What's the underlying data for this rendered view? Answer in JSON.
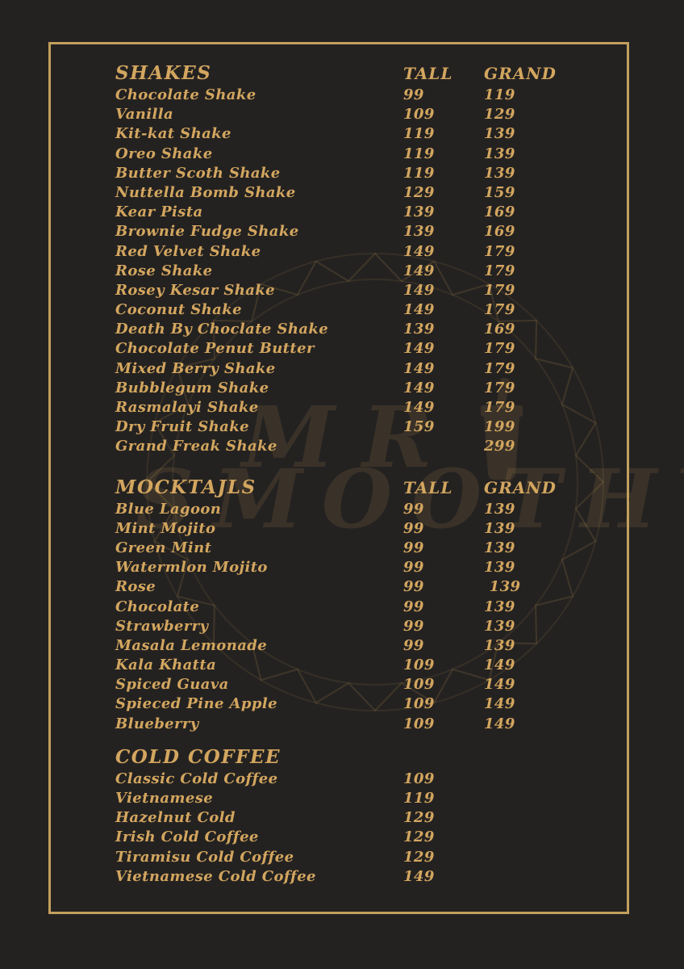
{
  "theme": {
    "background": "#242221",
    "text_gold": "#d3a65f",
    "border_gold": "#c2a05c",
    "watermark_gold": "#cda25a"
  },
  "watermark": {
    "line1": "MR",
    "line2": "SMOOTHY",
    "icon": "smoothie-cup-icon"
  },
  "column_headers": {
    "tall": "TALL",
    "grand": "GRAND"
  },
  "sections": [
    {
      "title": "SHAKES",
      "show_columns": true,
      "items": [
        {
          "name": "Chocolate Shake",
          "tall": "99",
          "grand": "119"
        },
        {
          "name": "Vanilla",
          "tall": "109",
          "grand": "129"
        },
        {
          "name": "Kit-kat Shake",
          "tall": "119",
          "grand": "139"
        },
        {
          "name": "Oreo Shake",
          "tall": "119",
          "grand": "139"
        },
        {
          "name": "Butter Scoth Shake",
          "tall": "119",
          "grand": "139"
        },
        {
          "name": "Nuttella Bomb Shake",
          "tall": "129",
          "grand": "159"
        },
        {
          "name": "Kear Pista",
          "tall": "139",
          "grand": "169"
        },
        {
          "name": "Brownie Fudge Shake",
          "tall": "139",
          "grand": "169"
        },
        {
          "name": "Red Velvet Shake",
          "tall": "149",
          "grand": "179"
        },
        {
          "name": "Rose Shake",
          "tall": "149",
          "grand": "179"
        },
        {
          "name": "Rosey Kesar Shake",
          "tall": "149",
          "grand": "179"
        },
        {
          "name": "Coconut Shake",
          "tall": "149",
          "grand": "179"
        },
        {
          "name": "Death By Choclate Shake",
          "tall": "139",
          "grand": "169"
        },
        {
          "name": "Chocolate Penut Butter",
          "tall": "149",
          "grand": "179"
        },
        {
          "name": "Mixed Berry Shake",
          "tall": "149",
          "grand": "179"
        },
        {
          "name": "Bubblegum Shake",
          "tall": "149",
          "grand": "179"
        },
        {
          "name": "Rasmalayi Shake",
          "tall": "149",
          "grand": "179"
        },
        {
          "name": "Dry Fruit Shake",
          "tall": "159",
          "grand": "199"
        },
        {
          "name": "Grand Freak Shake",
          "tall": "",
          "grand": "299"
        }
      ]
    },
    {
      "title": "MOCKTAJLS",
      "show_columns": true,
      "items": [
        {
          "name": "Blue Lagoon",
          "tall": "99",
          "grand": "139"
        },
        {
          "name": "Mint Mojito",
          "tall": "99",
          "grand": "139"
        },
        {
          "name": "Green Mint",
          "tall": "99",
          "grand": "139"
        },
        {
          "name": "Watermlon Mojito",
          "tall": "99",
          "grand": "139"
        },
        {
          "name": "Rose",
          "tall": "99",
          "grand": " 139"
        },
        {
          "name": "Chocolate",
          "tall": "99",
          "grand": "139"
        },
        {
          "name": "Strawberry",
          "tall": "99",
          "grand": "139"
        },
        {
          "name": "Masala Lemonade",
          "tall": "99",
          "grand": "139"
        },
        {
          "name": "Kala Khatta",
          "tall": "109",
          "grand": "149"
        },
        {
          "name": "Spiced Guava",
          "tall": "109",
          "grand": "149"
        },
        {
          "name": "Spieced Pine Apple",
          "tall": "109",
          "grand": "149"
        },
        {
          "name": "Blueberry",
          "tall": "109",
          "grand": "149"
        }
      ]
    },
    {
      "title": "COLD COFFEE",
      "show_columns": false,
      "items": [
        {
          "name": "Classic Cold Coffee",
          "tall": "109",
          "grand": ""
        },
        {
          "name": "Vietnamese",
          "tall": "119",
          "grand": ""
        },
        {
          "name": "Hazelnut Cold",
          "tall": "129",
          "grand": ""
        },
        {
          "name": "Irish Cold Coffee",
          "tall": "129",
          "grand": ""
        },
        {
          "name": "Tiramisu Cold Coffee",
          "tall": "129",
          "grand": ""
        },
        {
          "name": "Vietnamese Cold Coffee",
          "tall": "149",
          "grand": ""
        }
      ]
    }
  ]
}
